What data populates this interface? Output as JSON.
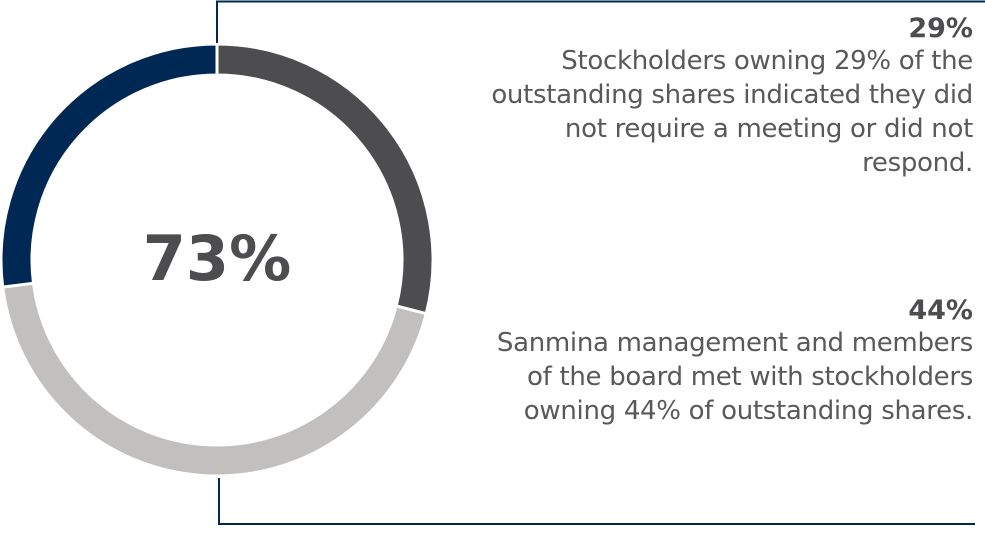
{
  "chart_data": {
    "type": "pie",
    "variant": "donut",
    "center_label": "73%",
    "slices": [
      {
        "value": 29,
        "color": "#4d4d4f"
      },
      {
        "value": 44,
        "color": "#c1c0bf"
      },
      {
        "value": 27,
        "color": "#002855"
      }
    ],
    "annotations": [
      {
        "value_label": "29%",
        "text": "Stockholders owning 29% of the outstanding shares indicated they did not require a meeting or did not respond."
      },
      {
        "value_label": "44%",
        "text": "Sanmina management and members of the board met with stockholders owning 44% of outstanding shares."
      }
    ],
    "connector_color": "#002855"
  }
}
